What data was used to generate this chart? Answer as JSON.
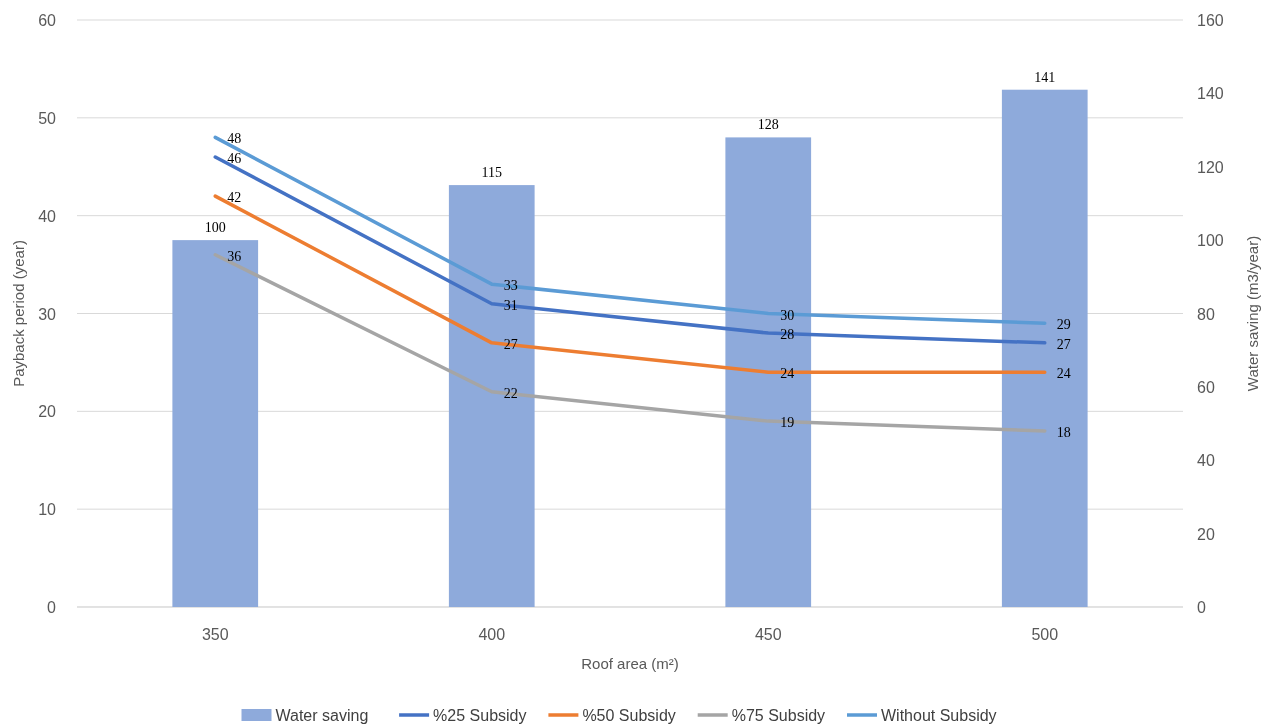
{
  "chart_data": {
    "type": "bar",
    "categories": [
      "350",
      "400",
      "450",
      "500"
    ],
    "xlabel": "Roof area (m²)",
    "ylabel": "Payback period (year)",
    "y2label": "Water saving (m3/year)",
    "ylim": [
      0,
      60
    ],
    "yticks": [
      0,
      10,
      20,
      30,
      40,
      50,
      60
    ],
    "y2lim": [
      0,
      160
    ],
    "y2ticks": [
      0,
      20,
      40,
      60,
      80,
      100,
      120,
      140,
      160
    ],
    "grid": "y",
    "legend": "bottom",
    "data_labels": true,
    "line_style": "solid",
    "marker": "none",
    "series": [
      {
        "name": "Water saving",
        "axis": "y2",
        "color": "#8eaadb",
        "values": [
          100,
          115,
          128,
          141
        ]
      },
      {
        "name": "%25 Subsidy",
        "type": "line",
        "color": "#4472c4",
        "values": [
          46,
          31,
          28,
          27
        ]
      },
      {
        "name": "%50 Subsidy",
        "type": "line",
        "color": "#ed7d31",
        "values": [
          42,
          27,
          24,
          24
        ]
      },
      {
        "name": "%75 Subsidy",
        "type": "line",
        "color": "#a5a5a5",
        "values": [
          36,
          22,
          19,
          18
        ]
      },
      {
        "name": "Without Subsidy",
        "type": "line",
        "color": "#5b9bd5",
        "values": [
          48,
          33,
          30,
          29
        ]
      }
    ]
  }
}
